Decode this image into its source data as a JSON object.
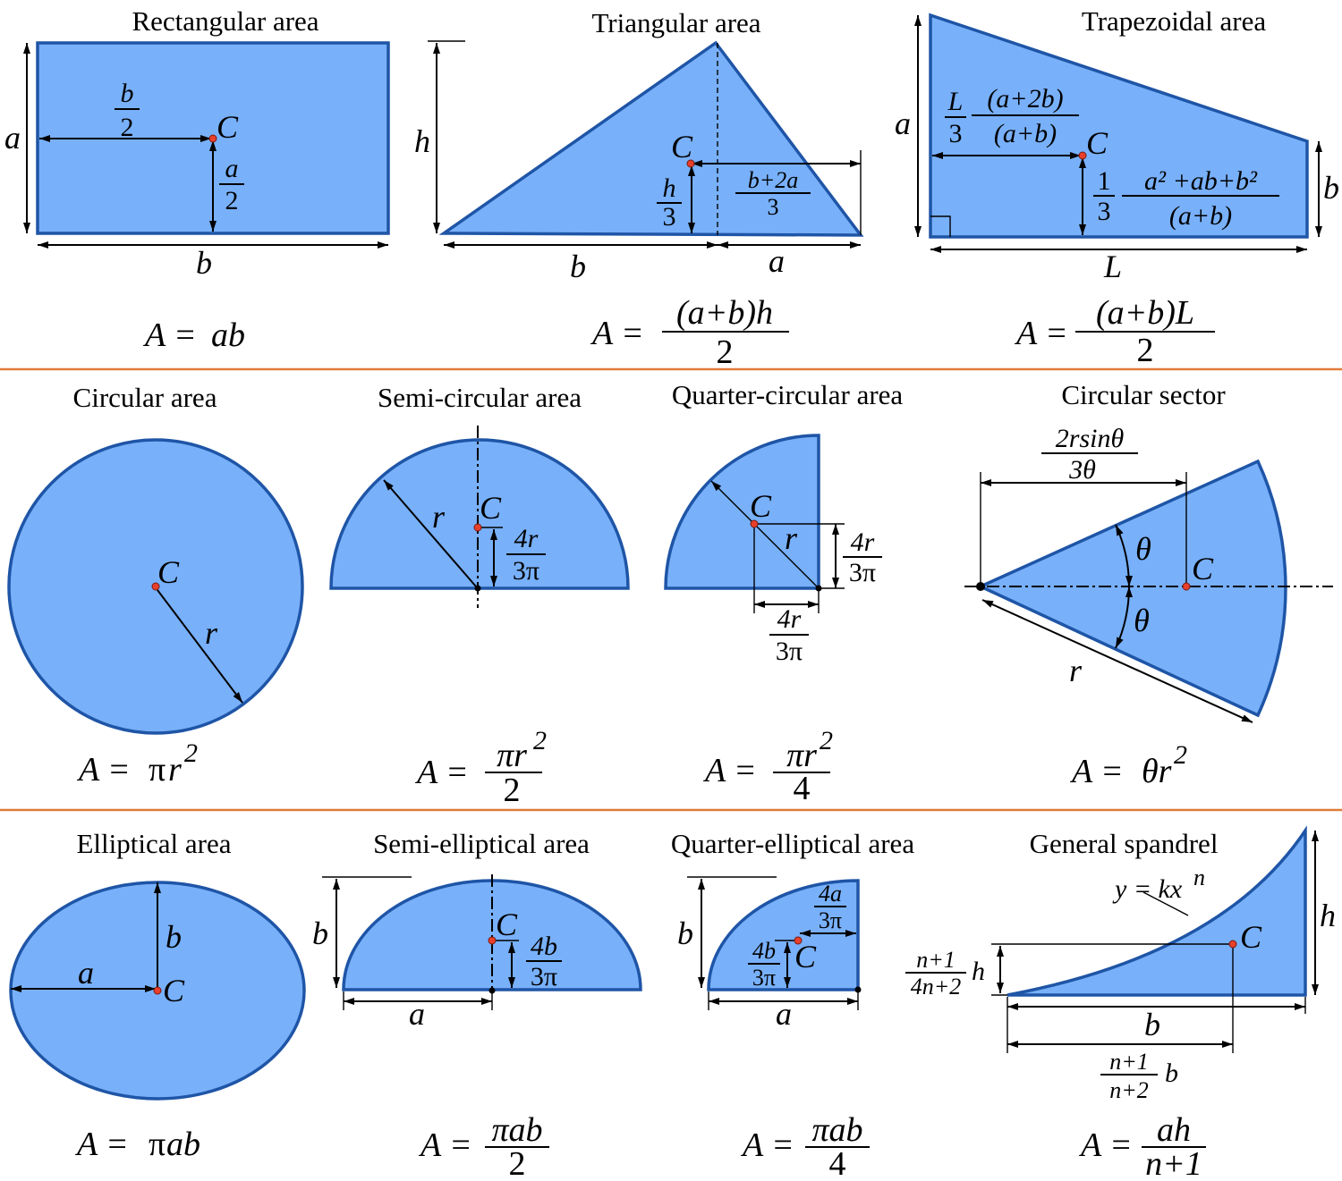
{
  "shapes": {
    "rect": {
      "title": "Rectangular area",
      "sym_a": "a",
      "sym_b": "b",
      "sym_c": "C",
      "half": "2",
      "formula_lhs": "A =",
      "formula_rhs": "ab"
    },
    "tri": {
      "title": "Triangular area",
      "sym_h": "h",
      "sym_c": "C",
      "sym_b": "b",
      "sym_a": "a",
      "frac_h_den": "3",
      "frac_b2a_num": "b+2a",
      "frac_b2a_den": "3",
      "formula_lhs": "A =",
      "formula_num": "(a+b)h",
      "formula_den": "2"
    },
    "trap": {
      "title": "Trapezoidal area",
      "sym_a": "a",
      "sym_b": "b",
      "sym_c": "C",
      "sym_L": "L",
      "frac_L_den": "3",
      "frac_a2b_num": "(a+2b)",
      "frac_a2b_den": "(a+b)",
      "frac_one": "1",
      "frac_three": "3",
      "frac_quad_num": "a² +ab+b²",
      "frac_quad_den": "(a+b)",
      "formula_lhs": "A =",
      "formula_num": "(a+b)L",
      "formula_den": "2"
    },
    "circle": {
      "title": "Circular area",
      "sym_c": "C",
      "sym_r": "r",
      "formula_lhs": "A =",
      "formula_pi": "π",
      "formula_r": "r",
      "formula_exp": "2"
    },
    "semicircle": {
      "title": "Semi-circular area",
      "sym_c": "C",
      "sym_r": "r",
      "frac_num": "4r",
      "frac_den": "3π",
      "formula_lhs": "A =",
      "formula_num": "πr",
      "formula_exp": "2",
      "formula_den": "2"
    },
    "quartercircle": {
      "title": "Quarter-circular area",
      "sym_c": "C",
      "sym_r": "r",
      "frac_num": "4r",
      "frac_den": "3π",
      "formula_lhs": "A =",
      "formula_num": "πr",
      "formula_exp": "2",
      "formula_den": "4"
    },
    "sector": {
      "title": "Circular sector",
      "sym_c": "C",
      "sym_r": "r",
      "sym_theta": "θ",
      "frac_num": "2rsinθ",
      "frac_den": "3θ",
      "formula_lhs": "A =",
      "formula_rhs": "θr",
      "formula_exp": "2"
    },
    "ellipse": {
      "title": "Elliptical area",
      "sym_a": "a",
      "sym_b": "b",
      "sym_c": "C",
      "formula_lhs": "A =",
      "formula_pi": "π",
      "formula_rhs": "ab"
    },
    "semiellipse": {
      "title": "Semi-elliptical area",
      "sym_a": "a",
      "sym_b": "b",
      "sym_c": "C",
      "frac_num": "4b",
      "frac_den": "3π",
      "formula_lhs": "A =",
      "formula_num": "πab",
      "formula_den": "2"
    },
    "quarterellipse": {
      "title": "Quarter-elliptical area",
      "sym_a": "a",
      "sym_b": "b",
      "sym_c": "C",
      "frac_a_num": "4a",
      "frac_a_den": "3π",
      "frac_b_num": "4b",
      "frac_b_den": "3π",
      "formula_lhs": "A =",
      "formula_num": "πab",
      "formula_den": "4"
    },
    "spandrel": {
      "title": "General spandrel",
      "curve_label": "y = kx",
      "curve_exp": "n",
      "sym_c": "C",
      "sym_h": "h",
      "sym_b": "b",
      "frac_h_num": "n+1",
      "frac_h_den": "4n+2",
      "frac_b_num": "n+1",
      "frac_b_den": "n+2",
      "formula_lhs": "A =",
      "formula_num": "ah",
      "formula_den": "n+1"
    }
  },
  "colors": {
    "fill": "#78b0fa",
    "stroke": "#1f55a6",
    "separator": "#e07b39",
    "centroid": "#e8402b"
  }
}
